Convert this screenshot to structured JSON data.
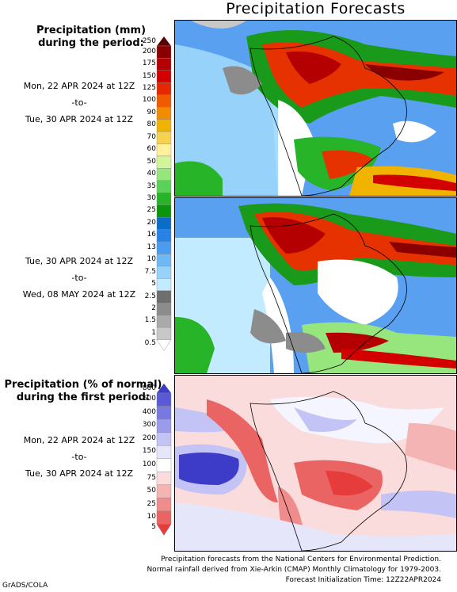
{
  "title": "Precipitation Forecasts",
  "legend_mm": {
    "heading_line1": "Precipitation (mm)",
    "heading_line2": "during the period:",
    "levels": [
      "250",
      "200",
      "175",
      "150",
      "125",
      "100",
      "90",
      "80",
      "70",
      "60",
      "50",
      "40",
      "35",
      "30",
      "25",
      "20",
      "16",
      "13",
      "10",
      "7.5",
      "5",
      "2.5",
      "2",
      "1.5",
      "1",
      "0.5"
    ],
    "colors": [
      "#5a0000",
      "#8a0000",
      "#b40000",
      "#d20000",
      "#e62800",
      "#f05a00",
      "#f08c00",
      "#f0b400",
      "#f5d250",
      "#fff09a",
      "#d2f59a",
      "#96e67d",
      "#5ad25a",
      "#28b428",
      "#0a960a",
      "#0a6ec8",
      "#2882e6",
      "#4b9bf0",
      "#6eb9f5",
      "#96d2fa",
      "#c3ebff",
      "#6e6e6e",
      "#8c8c8c",
      "#aaaaaa",
      "#c8c8c8",
      "#ffffff"
    ]
  },
  "period1": {
    "start": "Mon, 22 APR 2024 at 12Z",
    "sep": "-to-",
    "end": "Tue, 30 APR 2024 at 12Z"
  },
  "period2": {
    "start": "Tue, 30 APR 2024 at 12Z",
    "sep": "-to-",
    "end": "Wed, 08 MAY 2024 at 12Z"
  },
  "legend_pct": {
    "heading_line1": "Precipitation (% of normal)",
    "heading_line2": "during the first period:",
    "levels": [
      "800",
      "600",
      "400",
      "300",
      "200",
      "150",
      "100",
      "75",
      "50",
      "25",
      "10",
      "5"
    ],
    "colors": [
      "#3c3cc8",
      "#5a5ad7",
      "#7878e1",
      "#9b9beb",
      "#c3c3f5",
      "#e6e6fa",
      "#ffffff",
      "#fadcdc",
      "#f5b4b4",
      "#f08c8c",
      "#eb6464",
      "#e63c3c"
    ]
  },
  "period3": {
    "start": "Mon, 22 APR 2024 at 12Z",
    "sep": "-to-",
    "end": "Tue, 30 APR 2024 at 12Z"
  },
  "footer": {
    "line1": "Precipitation forecasts from the National Centers for Environmental Prediction.",
    "line2": "Normal rainfall derived from Xie-Arkin (CMAP) Monthly Climatology for 1979-2003.",
    "line3": "Forecast Initialization Time: 12Z22APR2024"
  },
  "credit": "GrADS/COLA"
}
